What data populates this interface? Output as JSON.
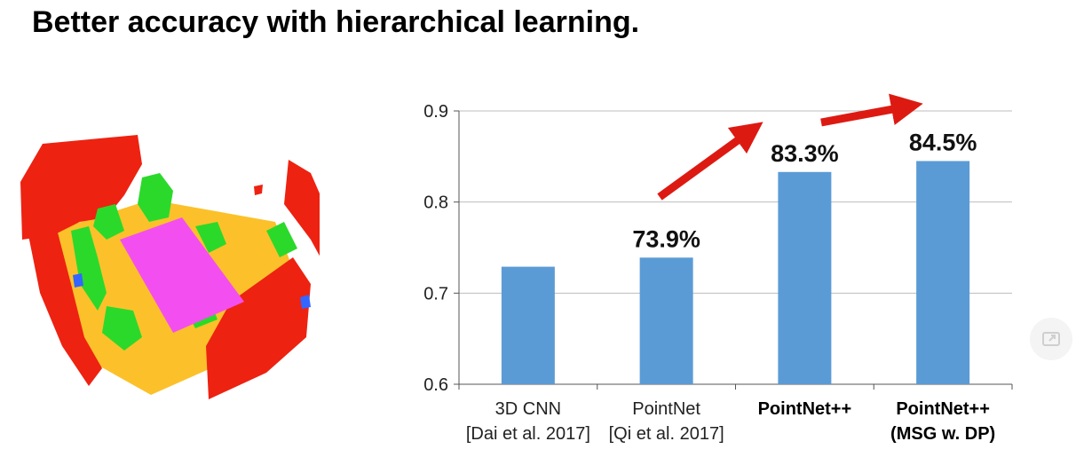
{
  "slide": {
    "title": "Better accuracy with hierarchical learning."
  },
  "illustration": {
    "name": "point-cloud-segmentation",
    "colors": {
      "red": "#ee2211",
      "yellow": "#fcc12a",
      "green": "#2bd92b",
      "magenta": "#f34ff0",
      "blue": "#3366ff"
    }
  },
  "arrows": {
    "color": "#dd1a12"
  },
  "chart_data": {
    "type": "bar",
    "categories": [
      [
        "3D CNN",
        "[Dai et al. 2017]"
      ],
      [
        "PointNet",
        "[Qi et al. 2017]"
      ],
      [
        "PointNet++"
      ],
      [
        "PointNet++",
        "(MSG w. DP)"
      ]
    ],
    "bold_categories": [
      false,
      false,
      true,
      true
    ],
    "values": [
      0.729,
      0.739,
      0.833,
      0.845
    ],
    "data_labels": [
      "",
      "73.9%",
      "83.3%",
      "84.5%"
    ],
    "ylim": [
      0.6,
      0.9
    ],
    "yticks": [
      "0.6",
      "0.7",
      "0.8",
      "0.9"
    ],
    "grid": true,
    "bar_color": "#5b9bd5",
    "title": "",
    "xlabel": "",
    "ylabel": ""
  }
}
